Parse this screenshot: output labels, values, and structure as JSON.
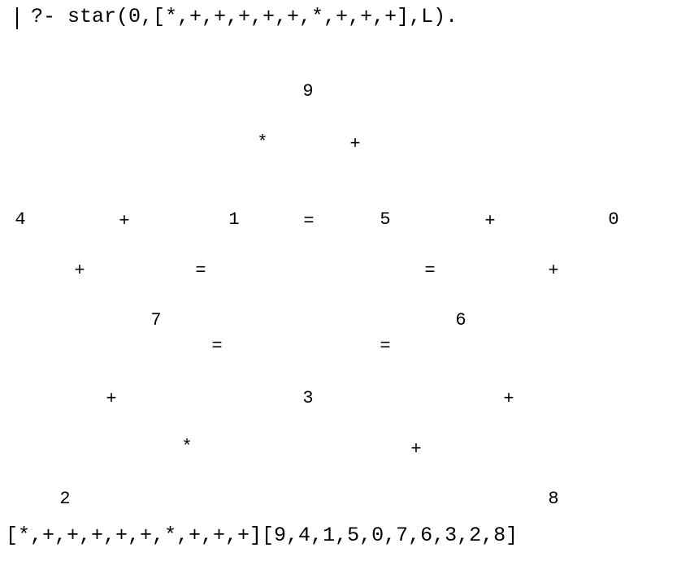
{
  "terminal": {
    "query": "?- star(0,[*,+,+,+,+,+,*,+,+,+],L).",
    "result": "[*,+,+,+,+,+,*,+,+,+][9,4,1,5,0,7,6,3,2,8]"
  },
  "star": {
    "numbers": {
      "top": "9",
      "left": "4",
      "inner_left": "1",
      "inner_right": "5",
      "right": "0",
      "mid_left": "7",
      "mid_right": "6",
      "center_bottom": "3",
      "bottom_left": "2",
      "bottom_right": "8"
    },
    "ops": {
      "op_top_left": "*",
      "op_top_right": "+",
      "op_row_a": "+",
      "eq_row_a_left": "=",
      "op_row_a_right": "+",
      "op_upper_left": "+",
      "eq_upper_left": "=",
      "eq_upper_right": "=",
      "op_upper_right": "+",
      "eq_lower_left": "=",
      "eq_lower_right": "=",
      "op_lower_left": "+",
      "op_lower_right": "+",
      "op_bottom_left": "*",
      "op_bottom_right": "+"
    }
  }
}
